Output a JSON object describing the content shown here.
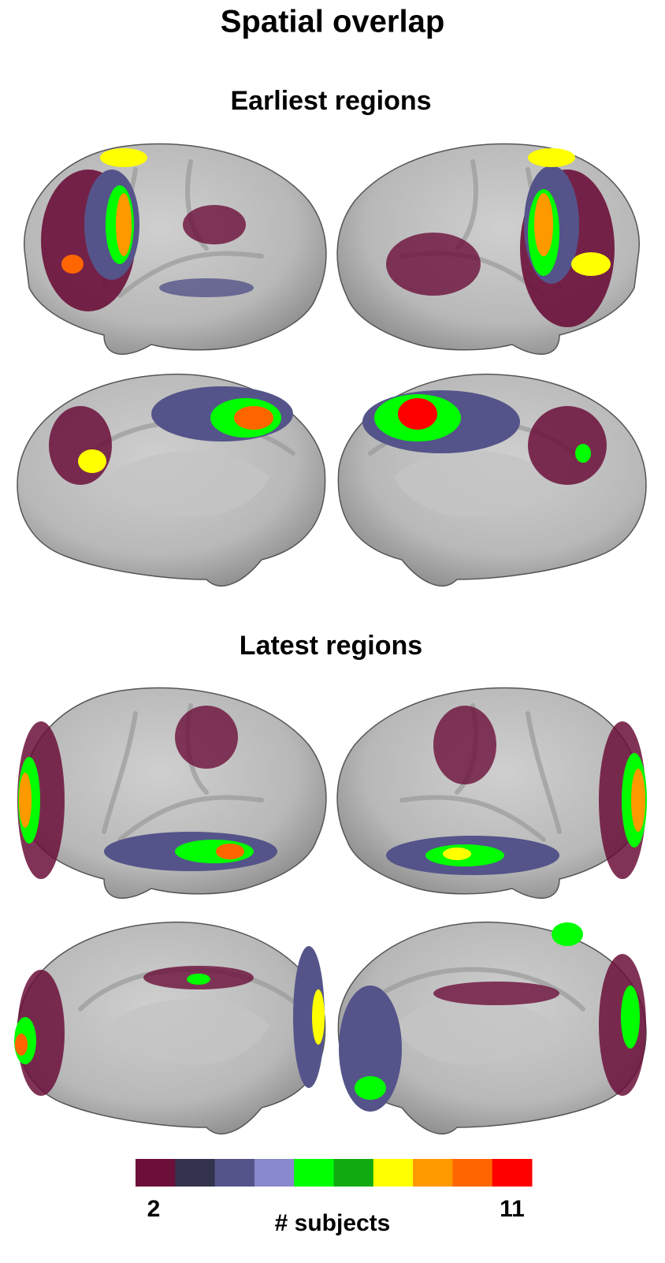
{
  "title": "Spatial overlap",
  "sections": [
    {
      "title": "Earliest regions"
    },
    {
      "title": "Latest regions"
    }
  ],
  "colorbar": {
    "min": 2,
    "max": 11,
    "label": "# subjects",
    "colors": [
      "#6b0f3a",
      "#33334d",
      "#54548a",
      "#8888cc",
      "#00ff00",
      "#11aa11",
      "#ffff00",
      "#ff9900",
      "#ff6600",
      "#ff0000"
    ]
  }
}
